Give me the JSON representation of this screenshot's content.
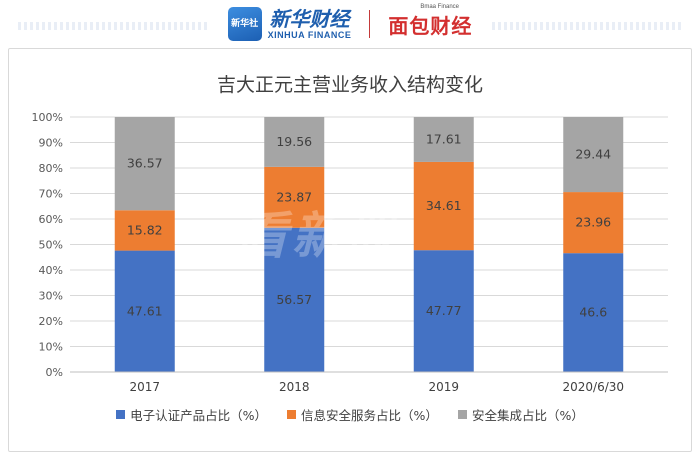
{
  "header": {
    "xinhua_badge": "新华社",
    "xinhua_cn": "新华财经",
    "xinhua_en": "XINHUA FINANCE",
    "partner_small": "Bmaa Finance",
    "partner_cn": "面包财经"
  },
  "watermark": "看新股",
  "colors": {
    "series1": "#4472c4",
    "series2": "#ed7d31",
    "series3": "#a5a5a5",
    "grid": "#d9d9d9"
  },
  "chart_data": {
    "type": "bar",
    "stacked": true,
    "percent": true,
    "title": "吉大正元主营业务收入结构变化",
    "categories": [
      "2017",
      "2018",
      "2019",
      "2020/6/30"
    ],
    "yticks": [
      "0%",
      "10%",
      "20%",
      "30%",
      "40%",
      "50%",
      "60%",
      "70%",
      "80%",
      "90%",
      "100%"
    ],
    "ylim": [
      0,
      100
    ],
    "grid": true,
    "legend_position": "bottom",
    "series": [
      {
        "name": "电子认证产品占比（%）",
        "values": [
          47.61,
          56.57,
          47.77,
          46.6
        ],
        "labels": [
          "47.61",
          "56.57",
          "47.77",
          "46.6"
        ]
      },
      {
        "name": "信息安全服务占比（%）",
        "values": [
          15.82,
          23.87,
          34.61,
          23.96
        ],
        "labels": [
          "15.82",
          "23.87",
          "34.61",
          "23.96"
        ]
      },
      {
        "name": "安全集成占比（%）",
        "values": [
          36.57,
          19.56,
          17.61,
          29.44
        ],
        "labels": [
          "36.57",
          "19.56",
          "17.61",
          "29.44"
        ]
      }
    ]
  }
}
